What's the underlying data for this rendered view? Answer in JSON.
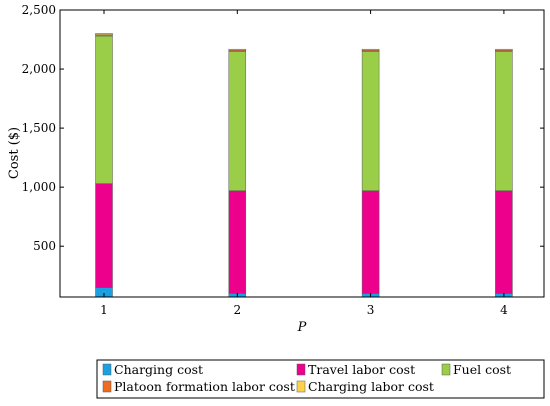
{
  "chart_data": {
    "type": "bar",
    "stacked": true,
    "xlabel": "P",
    "ylabel": "Cost ($)",
    "categories": [
      "1",
      "2",
      "3",
      "4"
    ],
    "ylim": [
      70,
      2500
    ],
    "yticks": [
      500,
      1000,
      1500,
      2000,
      2500
    ],
    "ytick_labels": [
      "500",
      "1,000",
      "1,500",
      "2,000",
      "2,500"
    ],
    "series": [
      {
        "name": "Charging cost",
        "color": "#1ba1e2",
        "values": [
          150,
          100,
          100,
          100
        ]
      },
      {
        "name": "Travel labor cost",
        "color": "#ec008c",
        "values": [
          880,
          870,
          870,
          870
        ]
      },
      {
        "name": "Fuel cost",
        "color": "#9acd48",
        "values": [
          1250,
          1180,
          1180,
          1180
        ]
      },
      {
        "name": "Platoon formation labor cost",
        "color": "#f06b1f",
        "values": [
          10,
          10,
          10,
          10
        ]
      },
      {
        "name": "Charging labor cost",
        "color": "#ffd24a",
        "values": [
          12,
          8,
          8,
          8
        ]
      }
    ],
    "legend_placement": "bottom",
    "grid": false
  }
}
